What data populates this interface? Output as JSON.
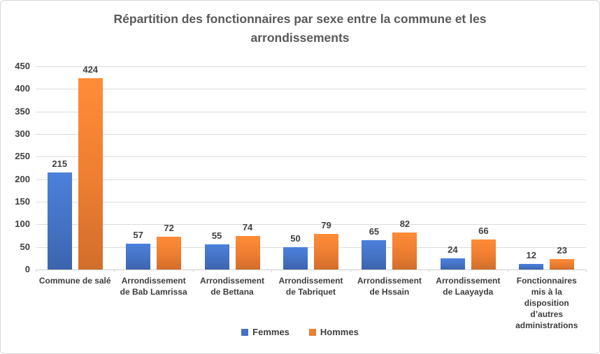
{
  "chart_data": {
    "type": "bar",
    "title": "Répartition des fonctionnaires par sexe entre la commune et les arrondissements",
    "categories": [
      "Commune de salé",
      "Arrondissement de Bab Lamrissa",
      "Arrondissement de Bettana",
      "Arrondissement de Tabriquet",
      "Arrondissement de Hssain",
      "Arrondissement de Laayayda",
      "Fonctionnaires mis à la disposition d’autres administrations"
    ],
    "series": [
      {
        "name": "Femmes",
        "color": "#4472C4",
        "values": [
          215,
          57,
          55,
          50,
          65,
          24,
          12
        ]
      },
      {
        "name": "Hommes",
        "color": "#ED7D31",
        "values": [
          424,
          72,
          74,
          79,
          82,
          66,
          23
        ]
      }
    ],
    "ylim": [
      0,
      450
    ],
    "yticks": [
      0,
      50,
      100,
      150,
      200,
      250,
      300,
      350,
      400,
      450
    ],
    "grid": true,
    "data_labels": true,
    "legend_position": "bottom",
    "xlabel": "",
    "ylabel": ""
  },
  "style": {
    "title_color": "#595959",
    "label_color": "#404040",
    "gridline_color": "#dcdcdc",
    "background": "#ffffff"
  }
}
